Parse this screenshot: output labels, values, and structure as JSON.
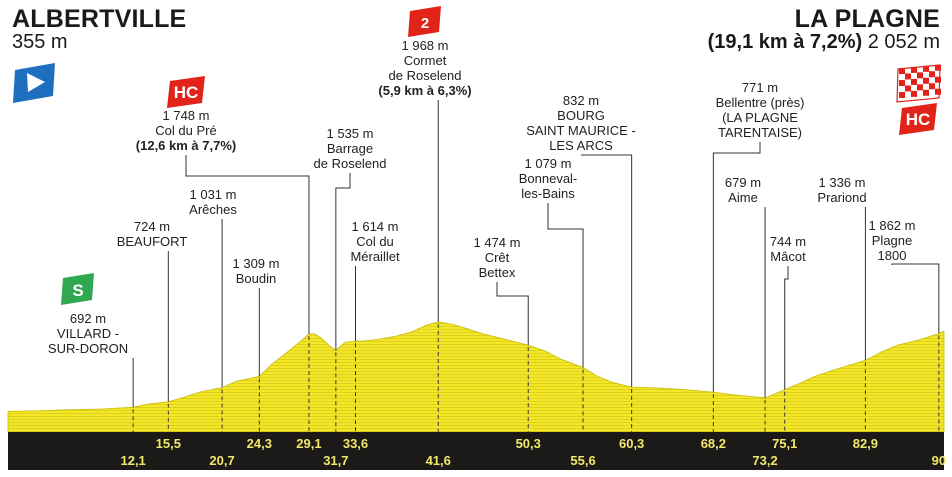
{
  "start": {
    "name": "ALBERTVILLE",
    "altitude": "355 m"
  },
  "finish": {
    "name": "LA PLAGNE",
    "climb": "(19,1 km à 7,2%)",
    "altitude": "2 052 m"
  },
  "colors": {
    "profile_fill": "#f4e725",
    "profile_hatch": "#d8cb12",
    "band": "#1c1a18",
    "km_text": "#f1e86a",
    "hc_red": "#e2231a",
    "sprint_green": "#2fa84f",
    "start_blue": "#1e6fc0"
  },
  "badges": {
    "hc": "HC",
    "cat2": "2",
    "sprint": "S"
  },
  "chart_data": {
    "type": "area",
    "title": "",
    "xlabel": "",
    "ylabel": "",
    "x_unit": "km",
    "y_unit": "m",
    "xlim": [
      0,
      90.5
    ],
    "profile": [
      [
        0,
        355
      ],
      [
        3,
        360
      ],
      [
        6,
        372
      ],
      [
        9,
        378
      ],
      [
        12.1,
        395
      ],
      [
        13.5,
        425
      ],
      [
        15.5,
        450
      ],
      [
        17,
        495
      ],
      [
        18.5,
        545
      ],
      [
        20.7,
        590
      ],
      [
        22,
        650
      ],
      [
        24.3,
        700
      ],
      [
        25.5,
        820
      ],
      [
        27,
        940
      ],
      [
        28.3,
        1050
      ],
      [
        29.1,
        1120
      ],
      [
        29.6,
        1125
      ],
      [
        30.3,
        1080
      ],
      [
        31.1,
        1000
      ],
      [
        31.7,
        960
      ],
      [
        32.6,
        1040
      ],
      [
        33.6,
        1050
      ],
      [
        34.5,
        1052
      ],
      [
        36,
        1070
      ],
      [
        37.5,
        1100
      ],
      [
        39,
        1140
      ],
      [
        40.5,
        1210
      ],
      [
        41.6,
        1240
      ],
      [
        43,
        1215
      ],
      [
        44.5,
        1170
      ],
      [
        46,
        1120
      ],
      [
        48,
        1070
      ],
      [
        50.3,
        1010
      ],
      [
        52,
        950
      ],
      [
        53.5,
        870
      ],
      [
        55.6,
        790
      ],
      [
        57,
        700
      ],
      [
        58.5,
        640
      ],
      [
        60.3,
        595
      ],
      [
        62,
        590
      ],
      [
        64,
        580
      ],
      [
        66,
        565
      ],
      [
        68.2,
        545
      ],
      [
        70,
        520
      ],
      [
        72,
        500
      ],
      [
        73.2,
        490
      ],
      [
        74,
        520
      ],
      [
        75.1,
        570
      ],
      [
        76.5,
        630
      ],
      [
        78,
        700
      ],
      [
        80,
        770
      ],
      [
        82.9,
        860
      ],
      [
        84.5,
        945
      ],
      [
        86,
        1010
      ],
      [
        88,
        1060
      ],
      [
        90,
        1125
      ],
      [
        90.5,
        1150
      ]
    ],
    "waypoints": [
      {
        "km": "12,1",
        "alt": "692 m",
        "name": [
          "VILLARD -",
          "SUR-DORON"
        ],
        "badge": "sprint"
      },
      {
        "km": "15,5",
        "alt": "724 m",
        "name": [
          "BEAUFORT"
        ]
      },
      {
        "km": "20,7",
        "alt": "1 031 m",
        "name": [
          "Arêches"
        ]
      },
      {
        "km": "24,3",
        "alt": "1 309 m",
        "name": [
          "Boudin"
        ]
      },
      {
        "km": "29,1",
        "alt": "1 748 m",
        "name": [
          "Col du Pré"
        ],
        "climb": "(12,6 km à 7,7%)",
        "badge": "hc"
      },
      {
        "km": "31,7",
        "alt": "1 535 m",
        "name": [
          "Barrage",
          "de Roselend"
        ]
      },
      {
        "km": "33,6",
        "alt": "1 614 m",
        "name": [
          "Col du",
          "Méraillet"
        ]
      },
      {
        "km": "41,6",
        "alt": "1 968 m",
        "name": [
          "Cormet",
          "de Roselend"
        ],
        "climb": "(5,9 km à 6,3%)",
        "badge": "cat2"
      },
      {
        "km": "50,3",
        "alt": "1 474 m",
        "name": [
          "Crêt",
          "Bettex"
        ]
      },
      {
        "km": "55,6",
        "alt": "1 079 m",
        "name": [
          "Bonneval-",
          "les-Bains"
        ]
      },
      {
        "km": "60,3",
        "alt": "832 m",
        "name": [
          "BOURG",
          "SAINT MAURICE -",
          "LES ARCS"
        ]
      },
      {
        "km": "68,2",
        "alt": "771 m",
        "name": [
          "Bellentre (près)",
          "(LA PLAGNE",
          "TARENTAISE)"
        ]
      },
      {
        "km": "73,2",
        "alt": "679 m",
        "name": [
          "Aime"
        ]
      },
      {
        "km": "75,1",
        "alt": "744 m",
        "name": [
          "Mâcot"
        ]
      },
      {
        "km": "82,9",
        "alt": "1 336 m",
        "name": [
          "Prariond"
        ]
      },
      {
        "km": "90",
        "alt": "1 862 m",
        "name": [
          "Plagne",
          "1800"
        ]
      }
    ]
  }
}
